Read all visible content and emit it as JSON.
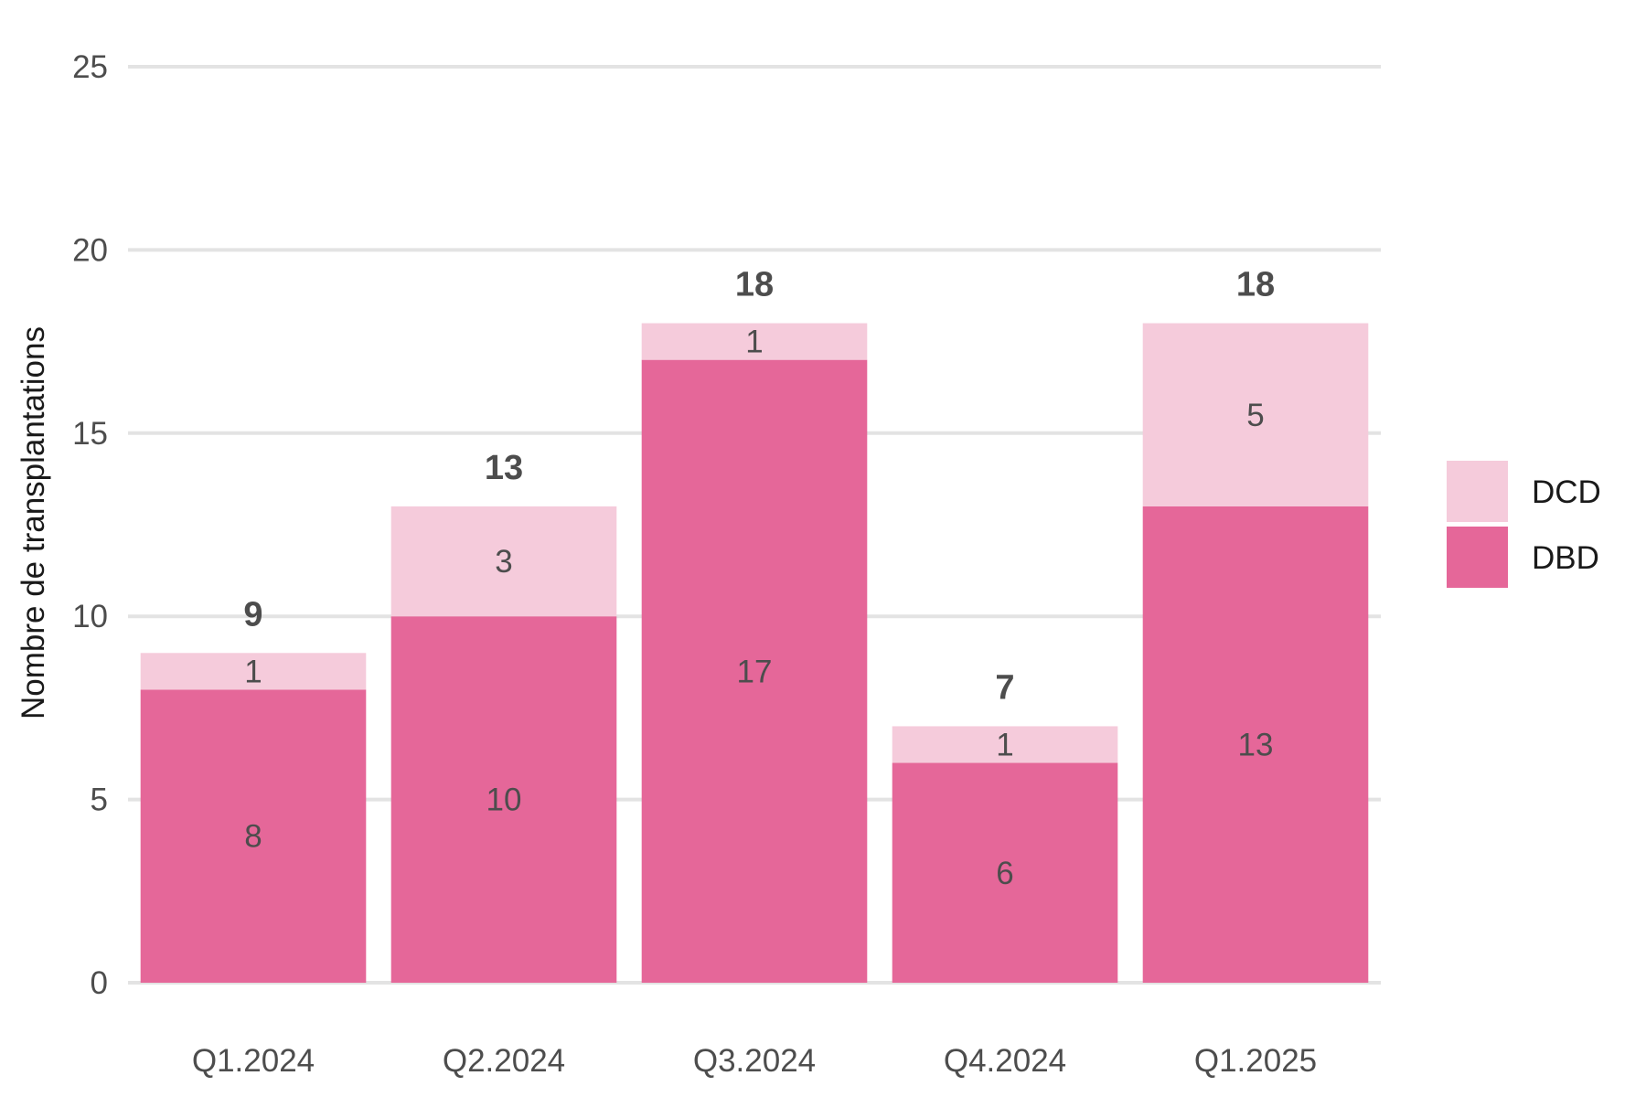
{
  "chart_data": {
    "type": "bar",
    "stacked": true,
    "categories": [
      "Q1.2024",
      "Q2.2024",
      "Q3.2024",
      "Q4.2024",
      "Q1.2025"
    ],
    "series": [
      {
        "name": "DBD",
        "values": [
          8,
          10,
          17,
          6,
          13
        ],
        "color": "#e56799"
      },
      {
        "name": "DCD",
        "values": [
          1,
          3,
          1,
          1,
          5
        ],
        "color": "#f5cbdb"
      }
    ],
    "totals": [
      9,
      13,
      18,
      7,
      18
    ],
    "title": "",
    "xlabel": "",
    "ylabel": "Nombre de transplantations",
    "ylim": [
      0,
      25
    ],
    "yticks": [
      0,
      5,
      10,
      15,
      20,
      25
    ],
    "grid": true,
    "legend_position": "right",
    "legend_order": [
      "DCD",
      "DBD"
    ]
  }
}
